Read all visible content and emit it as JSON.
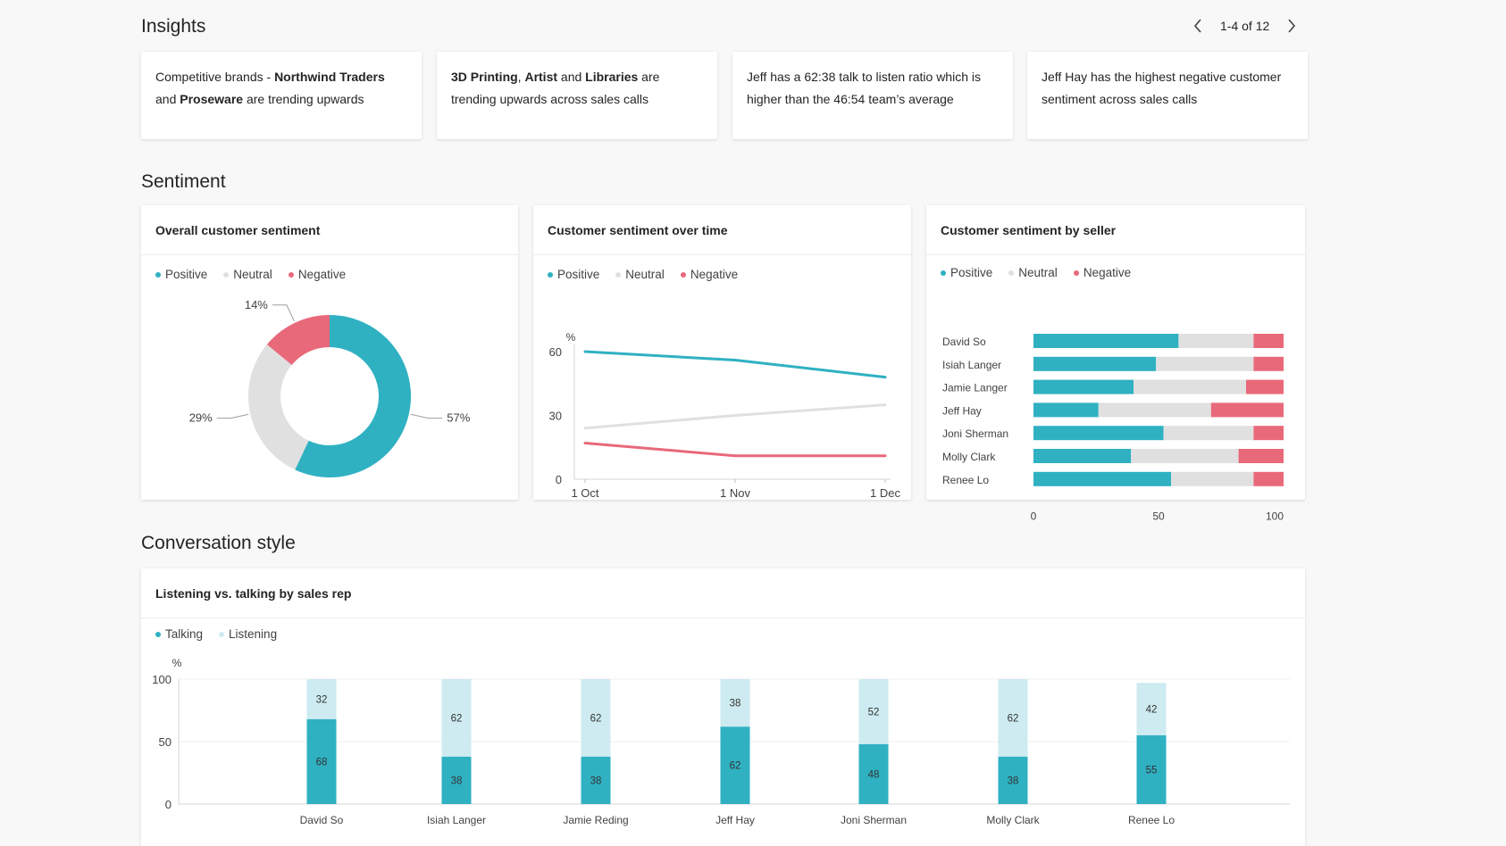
{
  "insights": {
    "title": "Insights",
    "pager": "1-4 of 12",
    "cards": [
      {
        "segments": [
          {
            "t": "Competitive brands - ",
            "b": false
          },
          {
            "t": "Northwind Traders",
            "b": true
          },
          {
            "t": " and ",
            "b": false
          },
          {
            "t": "Proseware",
            "b": true
          },
          {
            "t": " are trending upwards",
            "b": false
          }
        ]
      },
      {
        "segments": [
          {
            "t": "3D Printing",
            "b": true
          },
          {
            "t": ", ",
            "b": false
          },
          {
            "t": "Artist",
            "b": true
          },
          {
            "t": " and ",
            "b": false
          },
          {
            "t": "Libraries",
            "b": true
          },
          {
            "t": " are trending upwards across sales calls",
            "b": false
          }
        ]
      },
      {
        "segments": [
          {
            "t": "Jeff has a 62:38 talk to listen ratio which is higher than the 46:54 team’s average",
            "b": false
          }
        ]
      },
      {
        "segments": [
          {
            "t": "Jeff Hay has the highest negative customer sentiment across sales calls",
            "b": false
          }
        ]
      }
    ]
  },
  "sentiment": {
    "title": "Sentiment",
    "legend": [
      {
        "label": "Positive",
        "color": "#2fb1c2"
      },
      {
        "label": "Neutral",
        "color": "#e0e0e0"
      },
      {
        "label": "Negative",
        "color": "#e8697a"
      }
    ],
    "overall": {
      "title": "Overall customer sentiment"
    },
    "over_time": {
      "title": "Customer sentiment over time"
    },
    "by_seller": {
      "title": "Customer sentiment by seller"
    }
  },
  "conversation": {
    "title": "Conversation style",
    "card_title": "Listening vs. talking by sales rep",
    "legend": [
      {
        "label": "Talking",
        "color": "#2fb1c2"
      },
      {
        "label": "Listening",
        "color": "#cdebf0"
      }
    ]
  },
  "icons": {
    "prev": "chevron-left-icon",
    "next": "chevron-right-icon"
  },
  "chart_data": [
    {
      "type": "pie",
      "title": "Overall customer sentiment",
      "donut": true,
      "categories": [
        "Positive",
        "Neutral",
        "Negative"
      ],
      "values": [
        57,
        29,
        14
      ],
      "labels": [
        "57%",
        "29%",
        "14%"
      ],
      "colors": [
        "#2fb1c2",
        "#e0e0e0",
        "#e8697a"
      ],
      "legend": "top-left"
    },
    {
      "type": "line",
      "title": "Customer sentiment over time",
      "ylabel": "%",
      "ylim": [
        0,
        60
      ],
      "yticks": [
        0,
        30,
        60
      ],
      "x": [
        "1 Oct",
        "1 Nov",
        "1 Dec"
      ],
      "series": [
        {
          "name": "Positive",
          "color": "#2fb1c2",
          "values": [
            60,
            56,
            48
          ]
        },
        {
          "name": "Neutral",
          "color": "#e0e0e0",
          "values": [
            24,
            30,
            35
          ]
        },
        {
          "name": "Negative",
          "color": "#e8697a",
          "values": [
            17,
            11,
            11
          ]
        }
      ],
      "legend": "top-left",
      "grid": false
    },
    {
      "type": "bar",
      "orientation": "horizontal",
      "stacked": true,
      "title": "Customer sentiment by seller",
      "categories": [
        "David So",
        "Isiah Langer",
        "Jamie Langer",
        "Jeff Hay",
        "Joni Sherman",
        "Molly Clark",
        "Renee Lo"
      ],
      "xlim": [
        0,
        100
      ],
      "xticks": [
        0,
        50,
        100
      ],
      "series": [
        {
          "name": "Positive",
          "color": "#2fb1c2",
          "values": [
            58,
            49,
            40,
            26,
            52,
            39,
            55
          ]
        },
        {
          "name": "Neutral",
          "color": "#e0e0e0",
          "values": [
            30,
            39,
            45,
            45,
            36,
            43,
            33
          ]
        },
        {
          "name": "Negative",
          "color": "#e8697a",
          "values": [
            12,
            12,
            15,
            29,
            12,
            18,
            12
          ]
        }
      ],
      "legend": "top-left"
    },
    {
      "type": "bar",
      "stacked": true,
      "title": "Listening vs. talking by sales rep",
      "ylabel": "%",
      "ylim": [
        0,
        100
      ],
      "yticks": [
        0,
        50,
        100
      ],
      "categories": [
        "David So",
        "Isiah Langer",
        "Jamie Reding",
        "Jeff Hay",
        "Joni Sherman",
        "Molly Clark",
        "Renee Lo"
      ],
      "series": [
        {
          "name": "Talking",
          "color": "#2fb1c2",
          "values": [
            68,
            38,
            38,
            62,
            48,
            38,
            55
          ]
        },
        {
          "name": "Listening",
          "color": "#cdebf0",
          "values": [
            32,
            62,
            62,
            38,
            52,
            62,
            42
          ]
        }
      ],
      "legend": "top-left",
      "grid": true
    }
  ]
}
